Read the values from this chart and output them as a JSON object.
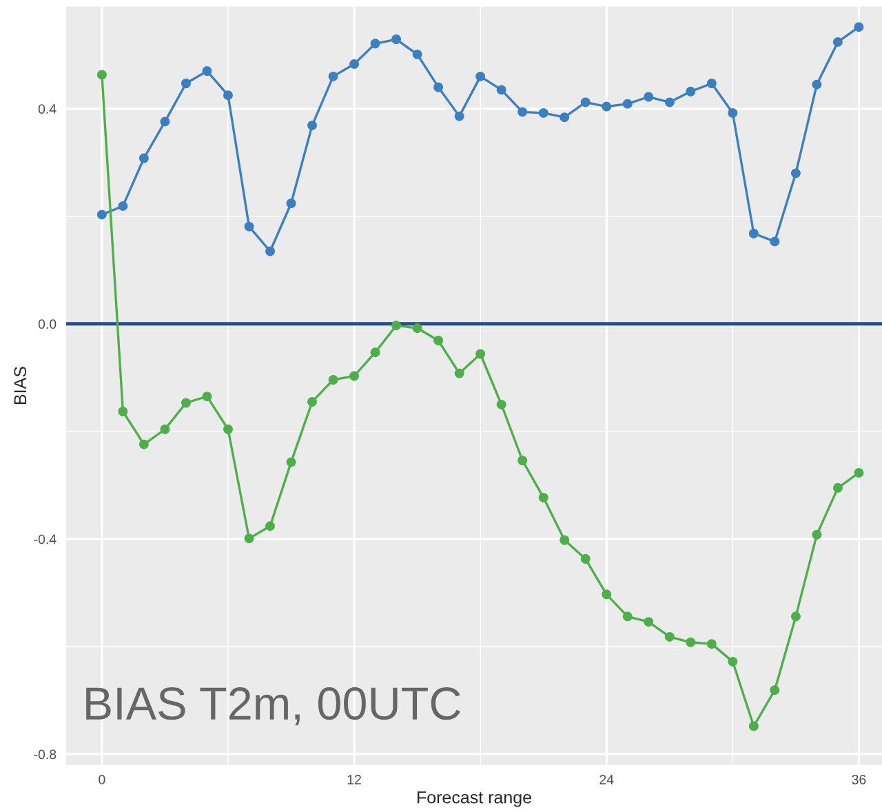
{
  "chart_data": {
    "type": "line",
    "xlabel": "Forecast range",
    "ylabel": "BIAS",
    "x": [
      0,
      1,
      2,
      3,
      4,
      5,
      6,
      7,
      8,
      9,
      10,
      11,
      12,
      13,
      14,
      15,
      16,
      17,
      18,
      19,
      20,
      21,
      22,
      23,
      24,
      25,
      26,
      27,
      28,
      29,
      30,
      31,
      32,
      33,
      34,
      35,
      36
    ],
    "series": [
      {
        "color": "#3a7fc1",
        "values": [
          0.203,
          0.219,
          0.308,
          0.376,
          0.447,
          0.47,
          0.425,
          0.181,
          0.135,
          0.224,
          0.369,
          0.46,
          0.483,
          0.521,
          0.529,
          0.501,
          0.44,
          0.386,
          0.46,
          0.435,
          0.394,
          0.392,
          0.384,
          0.412,
          0.404,
          0.409,
          0.422,
          0.412,
          0.432,
          0.447,
          0.392,
          0.168,
          0.153,
          0.28,
          0.445,
          0.524,
          0.552
        ]
      },
      {
        "color": "#4daf4a",
        "values": [
          0.463,
          -0.163,
          -0.224,
          -0.196,
          -0.147,
          -0.135,
          -0.196,
          -0.399,
          -0.376,
          -0.257,
          -0.145,
          -0.104,
          -0.097,
          -0.053,
          -0.003,
          -0.008,
          -0.031,
          -0.092,
          -0.056,
          -0.15,
          -0.254,
          -0.323,
          -0.402,
          -0.437,
          -0.503,
          -0.544,
          -0.554,
          -0.582,
          -0.592,
          -0.595,
          -0.628,
          -0.748,
          -0.681,
          -0.544,
          -0.392,
          -0.305,
          -0.277
        ]
      }
    ],
    "xlim": [
      -1.7,
      37.1
    ],
    "ylim": [
      -0.82,
      0.59
    ],
    "xticks": [
      0,
      12,
      24,
      36
    ],
    "yticks": [
      {
        "value": -0.8,
        "label": "-0.8"
      },
      {
        "value": -0.4,
        "label": "-0.4"
      },
      {
        "value": 0,
        "label": "0.0"
      },
      {
        "value": 0.4,
        "label": "0.4"
      }
    ],
    "ref_lines": [
      {
        "axis": "y",
        "value": 0,
        "color": "#1f4e8c"
      }
    ],
    "annotations": [
      "BIAS T2m, 00UTC"
    ],
    "grid": true,
    "marker": "circle",
    "line_style": "solid"
  }
}
